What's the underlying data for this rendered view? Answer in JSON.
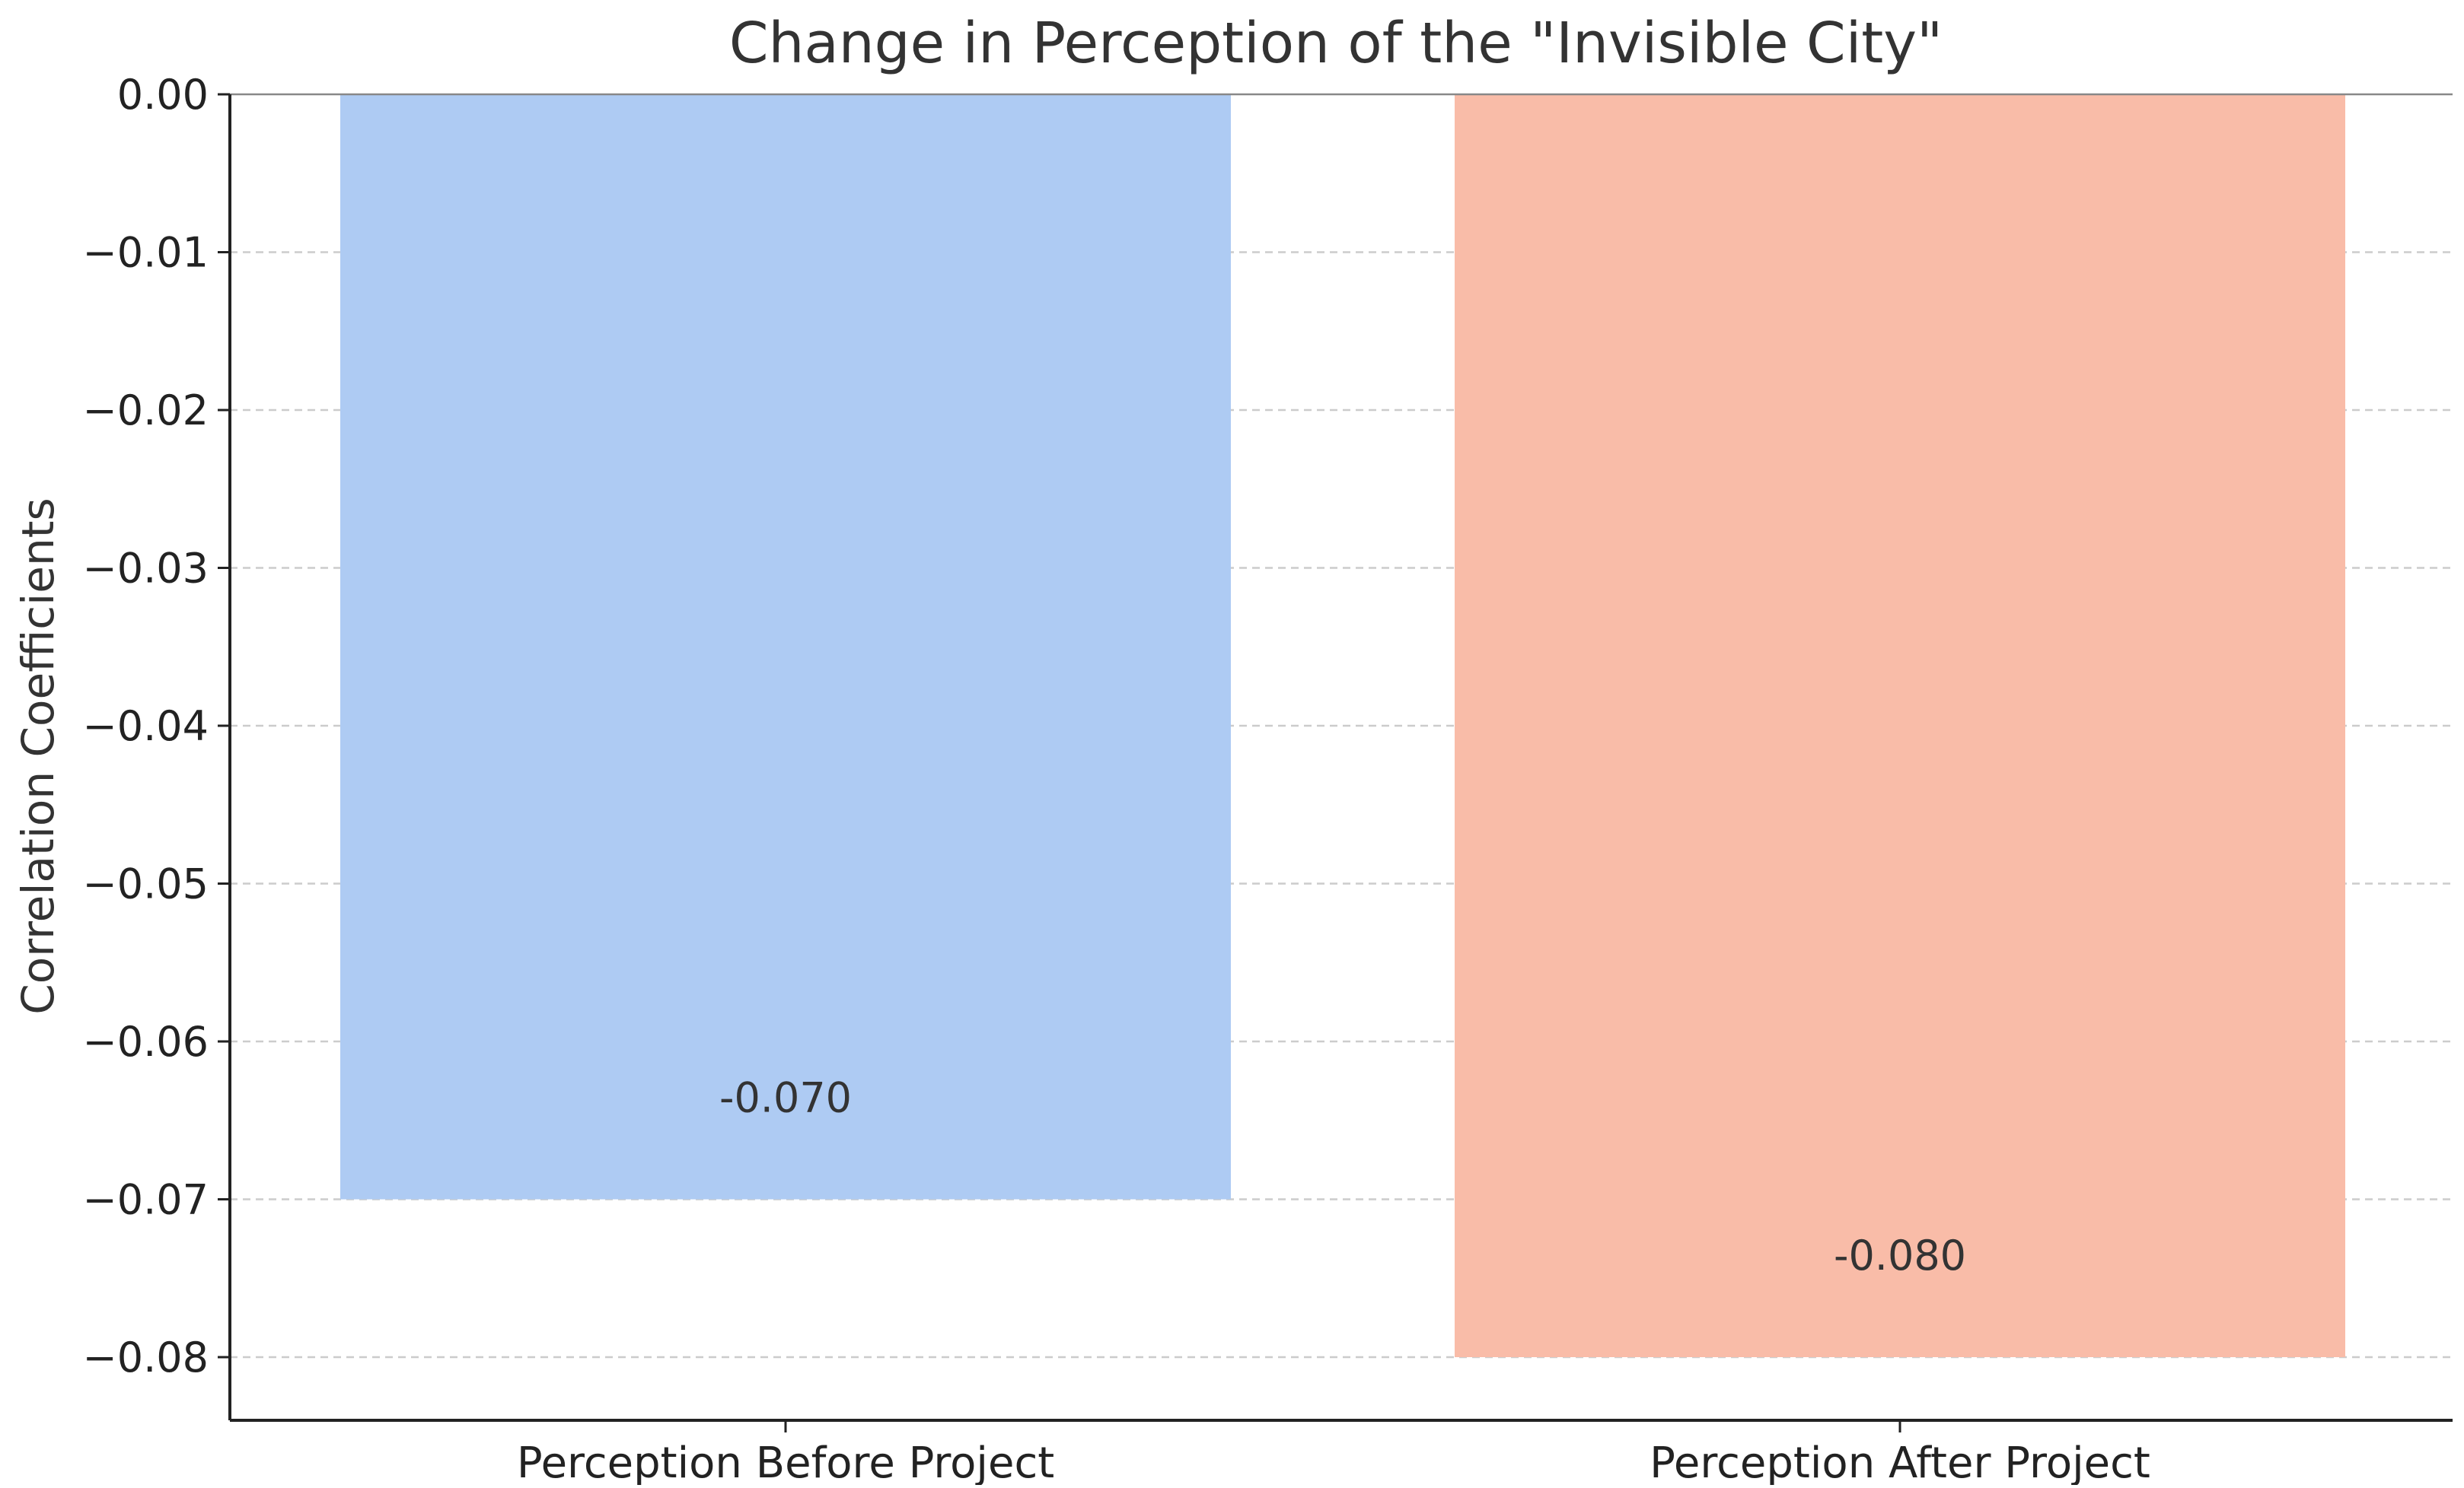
{
  "chart_data": {
    "type": "bar",
    "title": "Change in Perception of the \"Invisible City\"",
    "xlabel": "",
    "ylabel": "Correlation Coefficients",
    "categories": [
      "Perception Before Project",
      "Perception After Project"
    ],
    "values": [
      -0.07,
      -0.08
    ],
    "value_labels": [
      "-0.070",
      "-0.080"
    ],
    "colors": [
      "#aecbf3",
      "#f9bca8"
    ],
    "ylim": [
      -0.084,
      0.0
    ],
    "yticks": [
      0.0,
      -0.01,
      -0.02,
      -0.03,
      -0.04,
      -0.05,
      -0.06,
      -0.07,
      -0.08
    ],
    "ytick_labels": [
      "0.00",
      "−0.01",
      "−0.02",
      "−0.03",
      "−0.04",
      "−0.05",
      "−0.06",
      "−0.07",
      "−0.08"
    ],
    "grid": "y-dashed",
    "legend": "none"
  }
}
